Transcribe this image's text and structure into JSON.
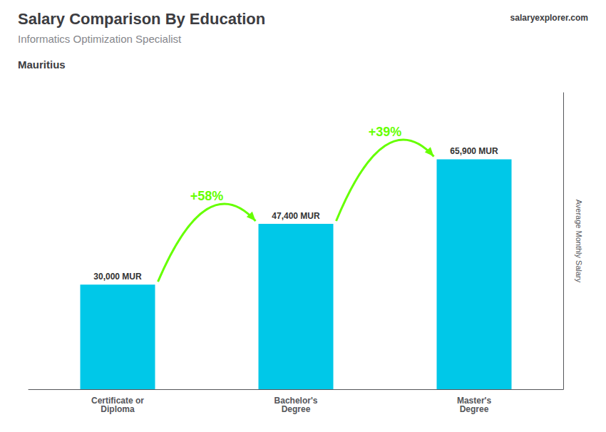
{
  "chart_data": {
    "type": "bar",
    "title": "Salary Comparison By Education",
    "subtitle": "Informatics Optimization Specialist",
    "country": "Mauritius",
    "watermark": [
      "salary",
      "explorer",
      ".com"
    ],
    "ylabel": "Average Monthly Salary",
    "categories": [
      "Certificate or\nDiploma",
      "Bachelor's\nDegree",
      "Master's\nDegree"
    ],
    "values": [
      30000,
      47400,
      65900
    ],
    "value_labels": [
      "30,000 MUR",
      "47,400 MUR",
      "65,900 MUR"
    ],
    "data_labels": true,
    "color": "#00c8e8",
    "ylim": [
      0,
      85000
    ],
    "yticks": [],
    "tick_labels": "x",
    "grid": false,
    "annotations": [
      {
        "text": "+58%",
        "from": "Certificate or\nDiploma",
        "to": "Bachelor's\nDegree",
        "color": "#66ff00"
      },
      {
        "text": "+39%",
        "from": "Bachelor's\nDegree",
        "to": "Master's\nDegree",
        "color": "#66ff00"
      }
    ]
  }
}
